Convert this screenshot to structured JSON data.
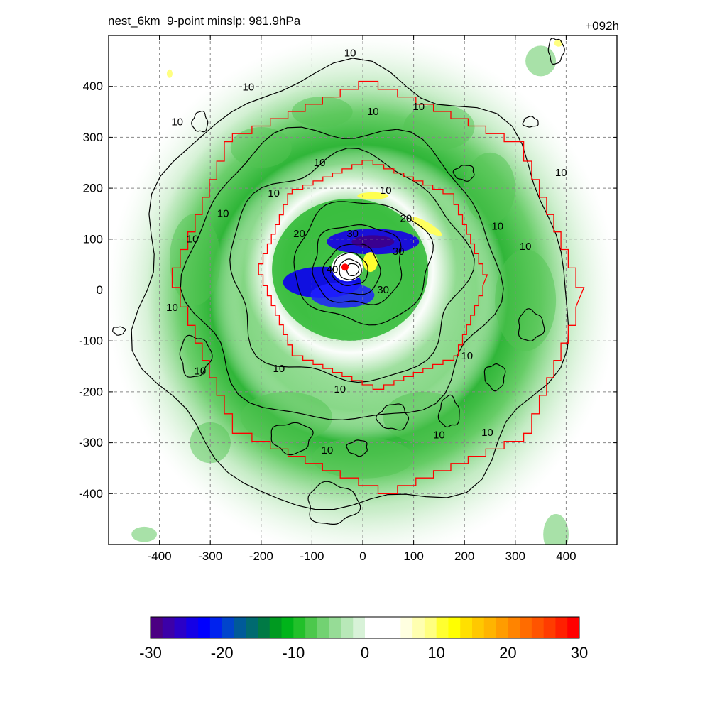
{
  "header": {
    "title_left": "nest_6km  9-point minslp: 981.9hPa",
    "title_right": "+092h"
  },
  "chart_data": {
    "type": "heatmap",
    "title": "nest_6km  9-point minslp: 981.9hPa",
    "forecast_hour": "+092h",
    "xlim": [
      -500,
      500
    ],
    "ylim": [
      -500,
      500
    ],
    "xticks": [
      -400,
      -300,
      -200,
      -100,
      0,
      100,
      200,
      300,
      400
    ],
    "yticks": [
      -400,
      -300,
      -200,
      -100,
      0,
      100,
      200,
      300,
      400
    ],
    "grid": true,
    "center": {
      "x": -35,
      "y": 45,
      "color": "#ff0000"
    },
    "colorbar": {
      "min": -30,
      "max": 30,
      "ticks": [
        -30,
        -20,
        -10,
        0,
        10,
        20,
        30
      ],
      "placement": "bottom",
      "colors": [
        "#4b0082",
        "#3c00a8",
        "#2a00c8",
        "#1400e6",
        "#0000ff",
        "#0022ee",
        "#0044cc",
        "#005a99",
        "#006a70",
        "#007a45",
        "#009a20",
        "#00b41a",
        "#22c02a",
        "#4cc84c",
        "#72d272",
        "#96dc96",
        "#b8e8b8",
        "#d8f2d8",
        "#ffffff",
        "#ffffff",
        "#ffffff",
        "#ffffe0",
        "#ffffb0",
        "#ffff80",
        "#ffff30",
        "#ffff00",
        "#ffe000",
        "#ffc800",
        "#ffb400",
        "#ff9c00",
        "#ff8400",
        "#ff6c00",
        "#ff5400",
        "#ff3c00",
        "#ff2000",
        "#ff0000"
      ]
    },
    "contour_labels": [
      {
        "x": -25,
        "y": 465,
        "text": "10"
      },
      {
        "x": -225,
        "y": 398,
        "text": "10"
      },
      {
        "x": -365,
        "y": 330,
        "text": "10"
      },
      {
        "x": 20,
        "y": 350,
        "text": "10"
      },
      {
        "x": 110,
        "y": 360,
        "text": "10"
      },
      {
        "x": -85,
        "y": 250,
        "text": "10"
      },
      {
        "x": 45,
        "y": 195,
        "text": "10"
      },
      {
        "x": -175,
        "y": 190,
        "text": "10"
      },
      {
        "x": -275,
        "y": 150,
        "text": "10"
      },
      {
        "x": -335,
        "y": 100,
        "text": "10"
      },
      {
        "x": 390,
        "y": 230,
        "text": "10"
      },
      {
        "x": 265,
        "y": 125,
        "text": "10"
      },
      {
        "x": 320,
        "y": 85,
        "text": "10"
      },
      {
        "x": -375,
        "y": -35,
        "text": "10"
      },
      {
        "x": -320,
        "y": -160,
        "text": "10"
      },
      {
        "x": -165,
        "y": -155,
        "text": "10"
      },
      {
        "x": -45,
        "y": -195,
        "text": "10"
      },
      {
        "x": 205,
        "y": -130,
        "text": "10"
      },
      {
        "x": 150,
        "y": -285,
        "text": "10"
      },
      {
        "x": 245,
        "y": -280,
        "text": "10"
      },
      {
        "x": -70,
        "y": -315,
        "text": "10"
      },
      {
        "x": 85,
        "y": 140,
        "text": "20"
      },
      {
        "x": -125,
        "y": 110,
        "text": "20"
      },
      {
        "x": -20,
        "y": 110,
        "text": "30"
      },
      {
        "x": 70,
        "y": 75,
        "text": "30"
      },
      {
        "x": 40,
        "y": 0,
        "text": "30"
      },
      {
        "x": -60,
        "y": 40,
        "text": "40"
      }
    ]
  }
}
